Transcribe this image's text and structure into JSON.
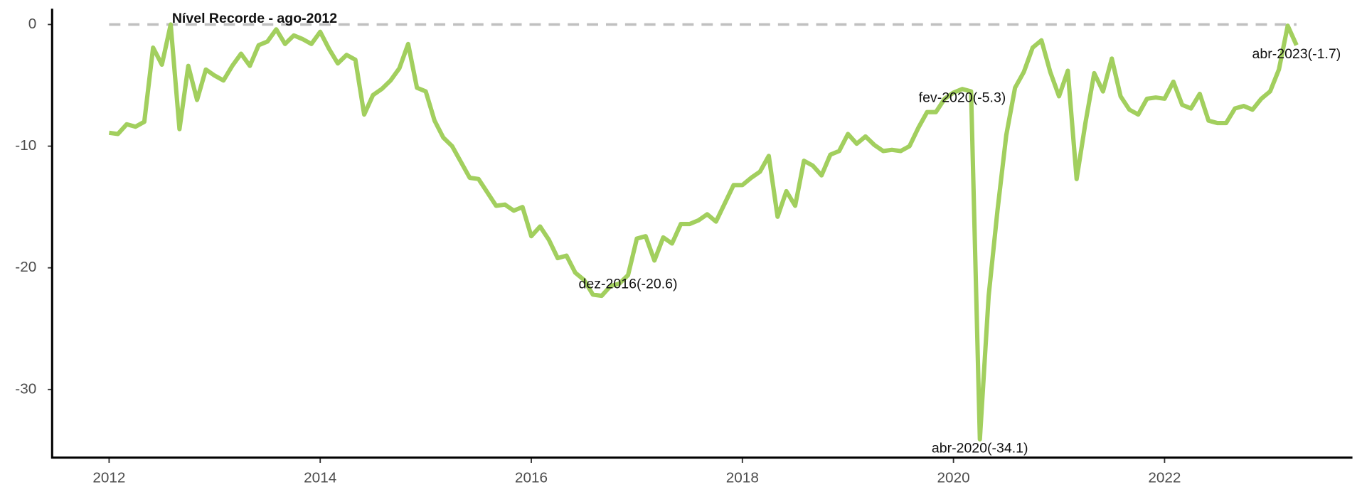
{
  "chart_data": {
    "type": "line",
    "x": [
      "2012-01",
      "2012-02",
      "2012-03",
      "2012-04",
      "2012-05",
      "2012-06",
      "2012-07",
      "2012-08",
      "2012-09",
      "2012-10",
      "2012-11",
      "2012-12",
      "2013-01",
      "2013-02",
      "2013-03",
      "2013-04",
      "2013-05",
      "2013-06",
      "2013-07",
      "2013-08",
      "2013-09",
      "2013-10",
      "2013-11",
      "2013-12",
      "2014-01",
      "2014-02",
      "2014-03",
      "2014-04",
      "2014-05",
      "2014-06",
      "2014-07",
      "2014-08",
      "2014-09",
      "2014-10",
      "2014-11",
      "2014-12",
      "2015-01",
      "2015-02",
      "2015-03",
      "2015-04",
      "2015-05",
      "2015-06",
      "2015-07",
      "2015-08",
      "2015-09",
      "2015-10",
      "2015-11",
      "2015-12",
      "2016-01",
      "2016-02",
      "2016-03",
      "2016-04",
      "2016-05",
      "2016-06",
      "2016-07",
      "2016-08",
      "2016-09",
      "2016-10",
      "2016-11",
      "2016-12",
      "2017-01",
      "2017-02",
      "2017-03",
      "2017-04",
      "2017-05",
      "2017-06",
      "2017-07",
      "2017-08",
      "2017-09",
      "2017-10",
      "2017-11",
      "2017-12",
      "2018-01",
      "2018-02",
      "2018-03",
      "2018-04",
      "2018-05",
      "2018-06",
      "2018-07",
      "2018-08",
      "2018-09",
      "2018-10",
      "2018-11",
      "2018-12",
      "2019-01",
      "2019-02",
      "2019-03",
      "2019-04",
      "2019-05",
      "2019-06",
      "2019-07",
      "2019-08",
      "2019-09",
      "2019-10",
      "2019-11",
      "2019-12",
      "2020-01",
      "2020-02",
      "2020-03",
      "2020-04",
      "2020-05",
      "2020-06",
      "2020-07",
      "2020-08",
      "2020-09",
      "2020-10",
      "2020-11",
      "2020-12",
      "2021-01",
      "2021-02",
      "2021-03",
      "2021-04",
      "2021-05",
      "2021-06",
      "2021-07",
      "2021-08",
      "2021-09",
      "2021-10",
      "2021-11",
      "2021-12",
      "2022-01",
      "2022-02",
      "2022-03",
      "2022-04",
      "2022-05",
      "2022-06",
      "2022-07",
      "2022-08",
      "2022-09",
      "2022-10",
      "2022-11",
      "2022-12",
      "2023-01",
      "2023-02",
      "2023-03",
      "2023-04"
    ],
    "series": [
      {
        "color": "#a2cf5e",
        "values": [
          -8.9,
          -9.0,
          -8.2,
          -8.4,
          -8.0,
          -1.9,
          -3.3,
          0,
          -8.6,
          -3.4,
          -6.2,
          -3.7,
          -4.2,
          -4.6,
          -3.4,
          -2.4,
          -3.4,
          -1.7,
          -1.4,
          -0.4,
          -1.6,
          -0.9,
          -1.2,
          -1.6,
          -0.6,
          -2.0,
          -3.2,
          -2.5,
          -2.9,
          -7.4,
          -5.8,
          -5.3,
          -4.6,
          -3.6,
          -1.6,
          -5.2,
          -5.5,
          -7.9,
          -9.3,
          -10.0,
          -11.3,
          -12.6,
          -12.7,
          -13.8,
          -14.9,
          -14.8,
          -15.3,
          -15.0,
          -17.4,
          -16.6,
          -17.7,
          -19.2,
          -19.0,
          -20.4,
          -21.0,
          -22.2,
          -22.3,
          -21.5,
          -21.3,
          -20.6,
          -17.6,
          -17.4,
          -19.4,
          -17.5,
          -18.0,
          -16.4,
          -16.4,
          -16.1,
          -15.6,
          -16.2,
          -14.7,
          -13.2,
          -13.2,
          -12.6,
          -12.1,
          -10.8,
          -15.8,
          -13.7,
          -14.9,
          -11.2,
          -11.6,
          -12.4,
          -10.7,
          -10.4,
          -9.0,
          -9.8,
          -9.2,
          -9.9,
          -10.4,
          -10.3,
          -10.4,
          -10.0,
          -8.5,
          -7.2,
          -7.2,
          -6.1,
          -5.6,
          -5.3,
          -5.5,
          -34.1,
          -22.3,
          -15.3,
          -9.1,
          -5.2,
          -3.9,
          -1.9,
          -1.3,
          -3.9,
          -5.9,
          -3.8,
          -12.7,
          -8.1,
          -4.0,
          -5.5,
          -2.8,
          -5.9,
          -7.0,
          -7.4,
          -6.1,
          -6.0,
          -6.1,
          -4.7,
          -6.6,
          -6.9,
          -5.7,
          -7.9,
          -8.1,
          -8.1,
          -6.9,
          -6.7,
          -7.0,
          -6.1,
          -5.5,
          -3.7,
          -0.1,
          -1.7
        ]
      }
    ],
    "xlim": [
      2011.46,
      2023.78
    ],
    "xticks": [
      2012,
      2014,
      2016,
      2018,
      2020,
      2022
    ],
    "ylim": [
      -35.6,
      1.3
    ],
    "yticks": [
      -30,
      -20,
      -10,
      0
    ],
    "reference_line": {
      "value": 0,
      "label": "Nível Recorde - ago-2012",
      "color": "#c0c0c0"
    },
    "annotations": [
      {
        "x": "2016-12",
        "label": "dez-2016(-20.6)"
      },
      {
        "x": "2020-02",
        "label": "fev-2020(-5.3)"
      },
      {
        "x": "2020-04",
        "label": "abr-2020(-34.1)"
      },
      {
        "x": "2023-04",
        "label": "abr-2023(-1.7)"
      }
    ]
  }
}
